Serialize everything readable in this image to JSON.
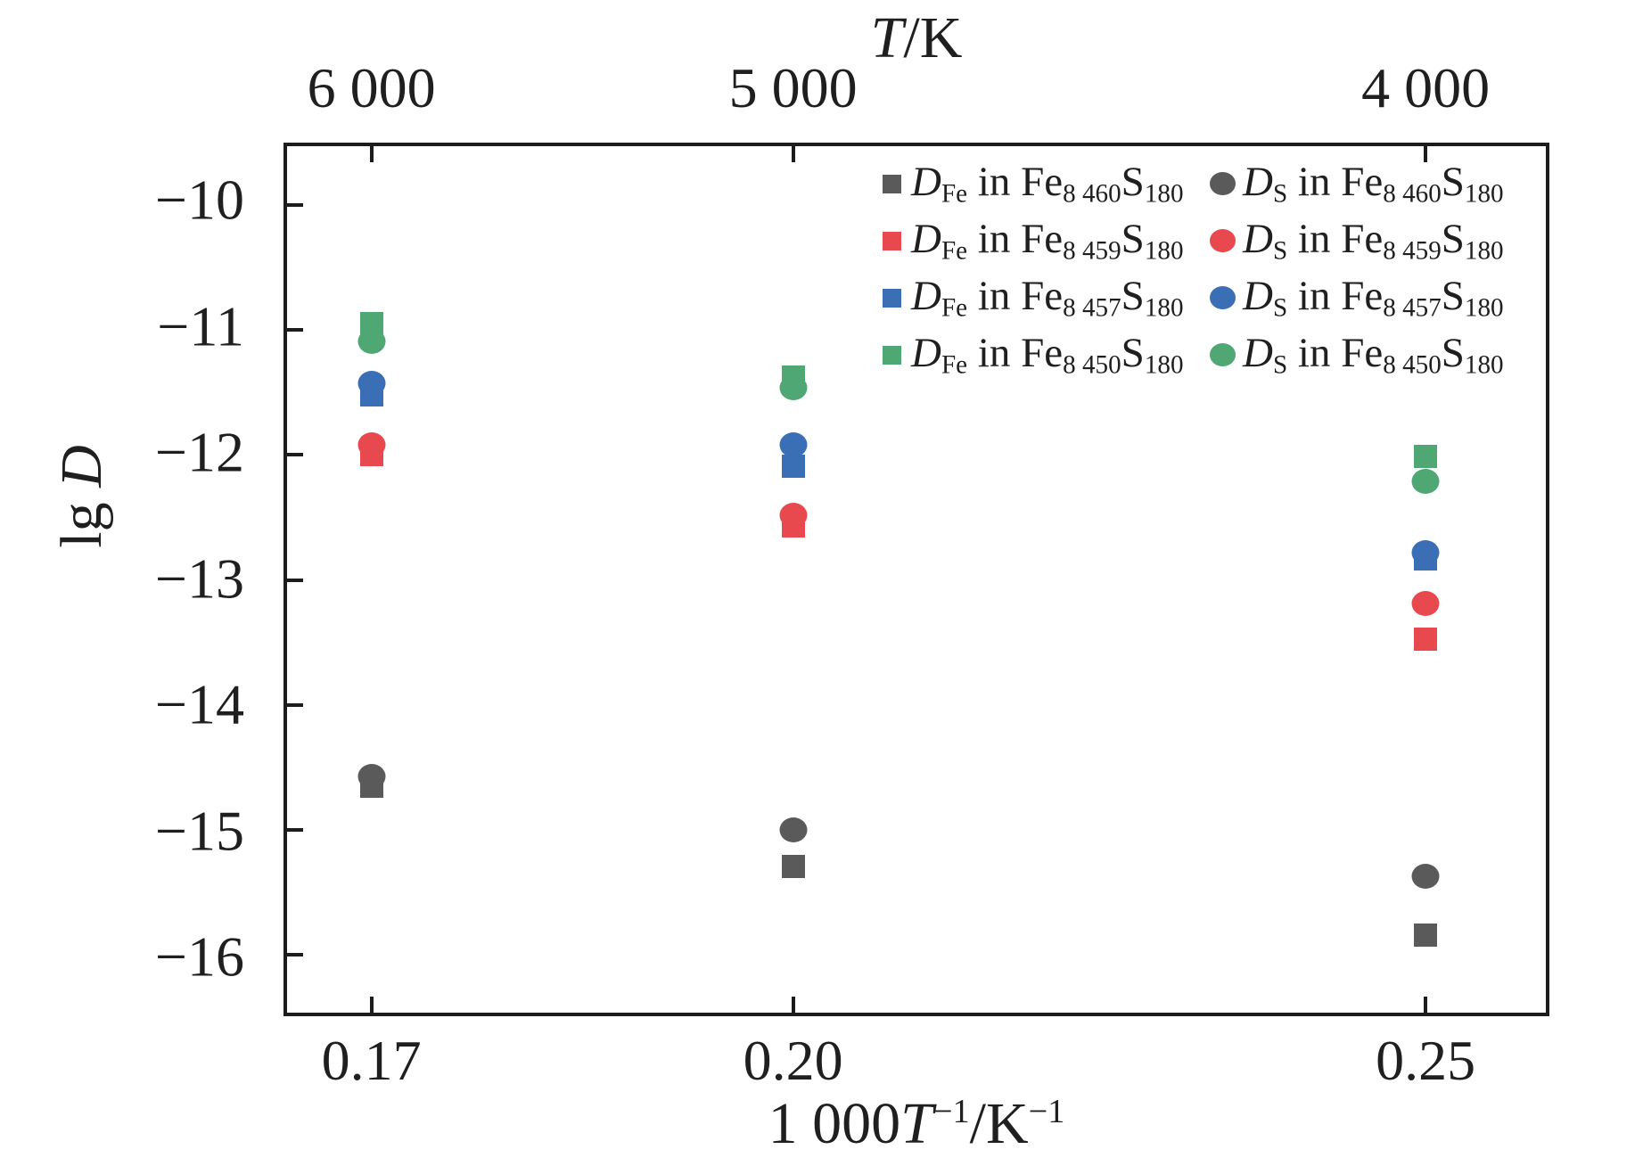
{
  "figure": {
    "top_axis_title": {
      "t": "T",
      "unit": "/K"
    },
    "x_axis_title": {
      "prefix": "1 000",
      "t": "T",
      "exp": "−1",
      "unit": "/K",
      "exp2": "−1"
    },
    "y_axis_title": {
      "prefix": "lg ",
      "d": "D"
    }
  },
  "chart_data": {
    "type": "scatter",
    "title": "",
    "grid": false,
    "x_axis": {
      "label": "1 000T−1/K−1",
      "range": [
        0.16,
        0.2595
      ],
      "tick_values": [
        0.16667,
        0.2,
        0.25
      ],
      "tick_labels": [
        "0.17",
        "0.20",
        "0.25"
      ]
    },
    "top_axis": {
      "label": "T/K",
      "tick_values": [
        0.16667,
        0.2,
        0.25
      ],
      "tick_labels": [
        "6 000",
        "5 000",
        "4 000"
      ]
    },
    "y_axis": {
      "label": "lg D",
      "range": [
        -16.46,
        -9.53
      ],
      "tick_values": [
        -10,
        -11,
        -12,
        -13,
        -14,
        -15,
        -16
      ],
      "tick_labels": [
        "−10",
        "−11",
        "−12",
        "−13",
        "−14",
        "−15",
        "−16"
      ]
    },
    "x": [
      0.16667,
      0.2,
      0.25
    ],
    "temperatures_K": [
      6000,
      5000,
      4000
    ],
    "series": [
      {
        "name": "D_Fe in Fe8 460S180",
        "marker": "square",
        "color": "#5a5a5a",
        "values": [
          -14.65,
          -15.29,
          -15.84
        ]
      },
      {
        "name": "D_S in Fe8 460S180",
        "marker": "circle",
        "color": "#5a5a5a",
        "values": [
          -14.57,
          -15.0,
          -15.37
        ]
      },
      {
        "name": "D_Fe in Fe8 459S180",
        "marker": "square",
        "color": "#e8494e",
        "values": [
          -12.0,
          -12.57,
          -13.47
        ]
      },
      {
        "name": "D_S in Fe8 459S180",
        "marker": "circle",
        "color": "#e8494e",
        "values": [
          -11.92,
          -12.48,
          -13.19
        ]
      },
      {
        "name": "D_Fe in Fe8 457S180",
        "marker": "square",
        "color": "#3a6fb5",
        "values": [
          -11.52,
          -12.09,
          -12.83
        ]
      },
      {
        "name": "D_S in Fe8 457S180",
        "marker": "circle",
        "color": "#3a6fb5",
        "values": [
          -11.43,
          -11.92,
          -12.78
        ]
      },
      {
        "name": "D_Fe in Fe8 450S180",
        "marker": "square",
        "color": "#4fa874",
        "values": [
          -10.95,
          -11.38,
          -12.01
        ]
      },
      {
        "name": "D_S in Fe8 450S180",
        "marker": "circle",
        "color": "#4fa874",
        "values": [
          -11.09,
          -11.46,
          -12.21
        ]
      }
    ],
    "legend": {
      "position": "top-right-inside",
      "parts": {
        "d": "D",
        "fe_sub": "Fe",
        "s_sub": "S",
        "mid": " in Fe",
        "s": "S",
        "s_suffix_sub": "180"
      },
      "rows": [
        {
          "color": "#5a5a5a",
          "comp_sub": "8 460",
          "fe_label": "D_Fe in Fe8 460S180",
          "s_label": "D_S in Fe8 460S180"
        },
        {
          "color": "#e8494e",
          "comp_sub": "8 459",
          "fe_label": "D_Fe in Fe8 459S180",
          "s_label": "D_S in Fe8 459S180"
        },
        {
          "color": "#3a6fb5",
          "comp_sub": "8 457",
          "fe_label": "D_Fe in Fe8 457S180",
          "s_label": "D_S in Fe8 457S180"
        },
        {
          "color": "#4fa874",
          "comp_sub": "8 450",
          "fe_label": "D_Fe in Fe8 450S180",
          "s_label": "D_S in Fe8 450S180"
        }
      ]
    }
  }
}
